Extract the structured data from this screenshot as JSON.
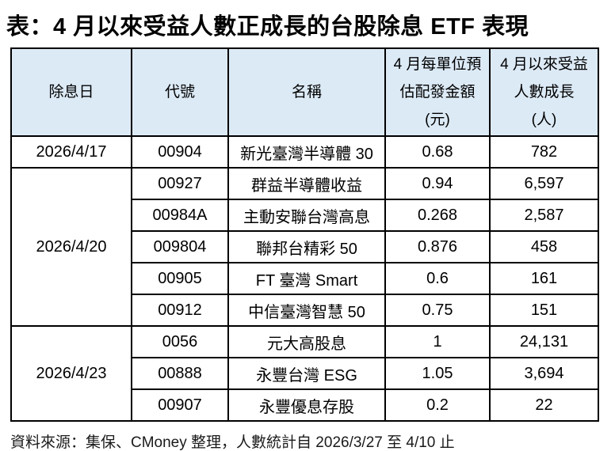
{
  "title": "表：4 月以來受益人數正成長的台股除息 ETF 表現",
  "footer": "資料來源：集保、CMoney 整理，人數統計自 2026/3/27 至 4/10 止",
  "table": {
    "headers": {
      "ex_date": "除息日",
      "code": "代號",
      "name": "名稱",
      "payout": "4 月每單位預\n估配發金額\n(元)",
      "growth": "4 月以來受益\n人數成長\n(人)"
    },
    "groups": [
      {
        "date": "2026/4/17",
        "rows": [
          {
            "code": "00904",
            "name": "新光臺灣半導體 30",
            "payout": "0.68",
            "growth": "782"
          }
        ]
      },
      {
        "date": "2026/4/20",
        "rows": [
          {
            "code": "00927",
            "name": "群益半導體收益",
            "payout": "0.94",
            "growth": "6,597"
          },
          {
            "code": "00984A",
            "name": "主動安聯台灣高息",
            "payout": "0.268",
            "growth": "2,587"
          },
          {
            "code": "009804",
            "name": "聯邦台精彩 50",
            "payout": "0.876",
            "growth": "458"
          },
          {
            "code": "00905",
            "name": "FT 臺灣 Smart",
            "payout": "0.6",
            "growth": "161"
          },
          {
            "code": "00912",
            "name": "中信臺灣智慧 50",
            "payout": "0.75",
            "growth": "151"
          }
        ]
      },
      {
        "date": "2026/4/23",
        "rows": [
          {
            "code": "0056",
            "name": "元大高股息",
            "payout": "1",
            "growth": "24,131"
          },
          {
            "code": "00888",
            "name": "永豐台灣 ESG",
            "payout": "1.05",
            "growth": "3,694"
          },
          {
            "code": "00907",
            "name": "永豐優息存股",
            "payout": "0.2",
            "growth": "22"
          }
        ]
      }
    ]
  },
  "colors": {
    "header_background": "#dceaf6",
    "border": "#000000",
    "text": "#000000"
  },
  "chart_data": {
    "type": "table",
    "title": "表：4 月以來受益人數正成長的台股除息 ETF 表現",
    "columns": [
      "除息日",
      "代號",
      "名稱",
      "4 月每單位預估配發金額(元)",
      "4 月以來受益人數成長(人)"
    ],
    "rows": [
      [
        "2026/4/17",
        "00904",
        "新光臺灣半導體 30",
        0.68,
        782
      ],
      [
        "2026/4/20",
        "00927",
        "群益半導體收益",
        0.94,
        6597
      ],
      [
        "2026/4/20",
        "00984A",
        "主動安聯台灣高息",
        0.268,
        2587
      ],
      [
        "2026/4/20",
        "009804",
        "聯邦台精彩 50",
        0.876,
        458
      ],
      [
        "2026/4/20",
        "00905",
        "FT 臺灣 Smart",
        0.6,
        161
      ],
      [
        "2026/4/20",
        "00912",
        "中信臺灣智慧 50",
        0.75,
        151
      ],
      [
        "2026/4/23",
        "0056",
        "元大高股息",
        1,
        24131
      ],
      [
        "2026/4/23",
        "00888",
        "永豐台灣 ESG",
        1.05,
        3694
      ],
      [
        "2026/4/23",
        "00907",
        "永豐優息存股",
        0.2,
        22
      ]
    ],
    "source_note": "資料來源：集保、CMoney 整理，人數統計自 2026/3/27 至 4/10 止"
  }
}
